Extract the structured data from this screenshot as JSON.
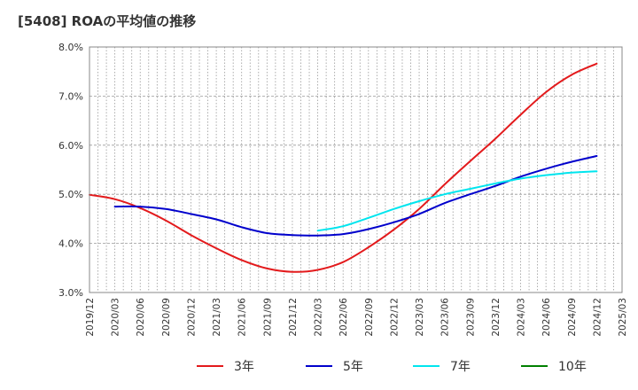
{
  "chart_data": {
    "type": "line",
    "title": "[5408]  ROAの平均値の推移",
    "xlabel": "",
    "ylabel": "",
    "x": [
      "2019/12",
      "2020/03",
      "2020/06",
      "2020/09",
      "2020/12",
      "2021/03",
      "2021/06",
      "2021/09",
      "2021/12",
      "2022/03",
      "2022/06",
      "2022/09",
      "2022/12",
      "2023/03",
      "2023/06",
      "2023/09",
      "2023/12",
      "2024/03",
      "2024/06",
      "2024/09",
      "2024/12",
      "2025/03"
    ],
    "ylim": [
      3.0,
      8.0
    ],
    "yticks": [
      "3.0%",
      "4.0%",
      "5.0%",
      "6.0%",
      "7.0%",
      "8.0%"
    ],
    "grid": true,
    "legend_position": "bottom",
    "series": [
      {
        "name": "3年",
        "color": "#e31a1c",
        "values": [
          4.99,
          4.9,
          4.72,
          4.47,
          4.17,
          3.9,
          3.66,
          3.49,
          3.42,
          3.46,
          3.62,
          3.92,
          4.28,
          4.7,
          5.2,
          5.67,
          6.13,
          6.62,
          7.08,
          7.43,
          7.66,
          null
        ]
      },
      {
        "name": "5年",
        "color": "#0000cc",
        "values": [
          null,
          4.75,
          4.75,
          4.7,
          4.6,
          4.49,
          4.33,
          4.21,
          4.17,
          4.16,
          4.19,
          4.29,
          4.43,
          4.6,
          4.82,
          5.0,
          5.17,
          5.36,
          5.52,
          5.66,
          5.78,
          null
        ]
      },
      {
        "name": "7年",
        "color": "#00e5ee",
        "values": [
          null,
          null,
          null,
          null,
          null,
          null,
          null,
          null,
          null,
          4.26,
          4.35,
          4.52,
          4.7,
          4.86,
          5.0,
          5.11,
          5.22,
          5.32,
          5.39,
          5.44,
          5.47,
          null
        ]
      },
      {
        "name": "10年",
        "color": "#008000",
        "values": [
          null,
          null,
          null,
          null,
          null,
          null,
          null,
          null,
          null,
          null,
          null,
          null,
          null,
          null,
          null,
          null,
          null,
          null,
          null,
          null,
          null,
          null
        ]
      }
    ]
  }
}
